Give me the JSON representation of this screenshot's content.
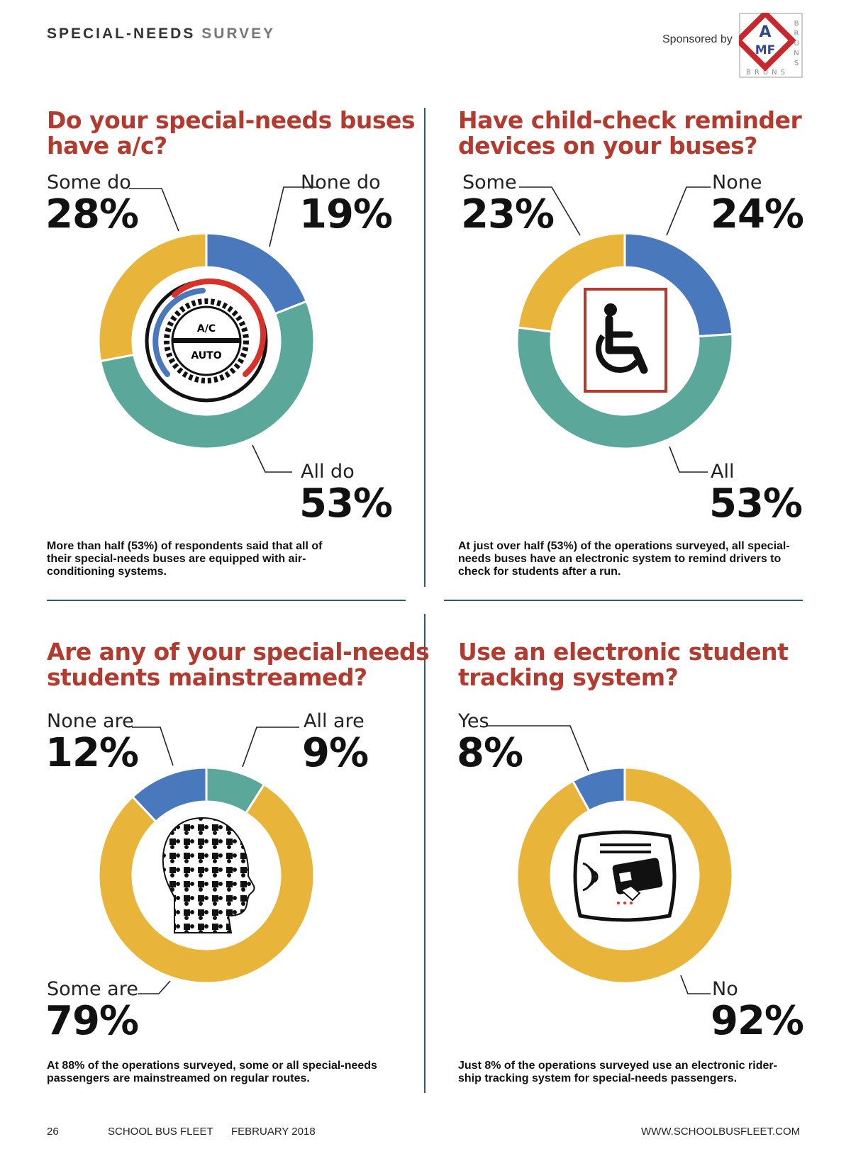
{
  "header": {
    "section_title_bold": "SPECIAL-NEEDS",
    "section_title_light": "SURVEY",
    "sponsor_text": "Sponsored by",
    "sponsor_logo": {
      "main": "AMF",
      "side": "BRUNS",
      "bottom": "BRUNS",
      "colors": {
        "red": "#c8282d",
        "blue": "#2e4a8e"
      }
    }
  },
  "colors": {
    "blue": "#4a78bd",
    "teal": "#5ba89b",
    "gold": "#e9b43a",
    "accent_red": "#b33a2e",
    "divider": "#2b5e6e"
  },
  "chart_data": [
    {
      "type": "pie",
      "title": "Do your special-needs buses have a/c?",
      "icon": "ac-dial-icon",
      "icon_text": {
        "top": "A/C",
        "bottom": "AUTO"
      },
      "slices": [
        {
          "label": "None do",
          "value": 19,
          "display": "19%",
          "color": "#4a78bd"
        },
        {
          "label": "All do",
          "value": 53,
          "display": "53%",
          "color": "#5ba89b"
        },
        {
          "label": "Some do",
          "value": 28,
          "display": "28%",
          "color": "#e9b43a"
        }
      ],
      "caption": "More than half (53%) of respondents said that all of their special-needs buses are equipped with air-conditioning systems."
    },
    {
      "type": "pie",
      "title": "Have child-check reminder devices on your buses?",
      "icon": "wheelchair-icon",
      "slices": [
        {
          "label": "None",
          "value": 24,
          "display": "24%",
          "color": "#4a78bd"
        },
        {
          "label": "All",
          "value": 53,
          "display": "53%",
          "color": "#5ba89b"
        },
        {
          "label": "Some",
          "value": 23,
          "display": "23%",
          "color": "#e9b43a"
        }
      ],
      "caption": "At just over half (53%) of the operations surveyed, all special-needs buses have an electronic system to remind drivers to check for students after a run."
    },
    {
      "type": "pie",
      "title": "Are any of your special-needs students mainstreamed?",
      "icon": "puzzle-head-icon",
      "slices": [
        {
          "label": "All are",
          "value": 9,
          "display": "9%",
          "color": "#5ba89b"
        },
        {
          "label": "Some are",
          "value": 79,
          "display": "79%",
          "color": "#e9b43a"
        },
        {
          "label": "None are",
          "value": 12,
          "display": "12%",
          "color": "#4a78bd"
        }
      ],
      "caption": "At 88% of the operations surveyed, some or all special-needs passengers are mainstreamed on regular routes."
    },
    {
      "type": "pie",
      "title": "Use an electronic student tracking system?",
      "icon": "card-reader-icon",
      "slices": [
        {
          "label": "No",
          "value": 92,
          "display": "92%",
          "color": "#e9b43a"
        },
        {
          "label": "Yes",
          "value": 8,
          "display": "8%",
          "color": "#4a78bd"
        }
      ],
      "caption": "Just 8% of the operations surveyed use an electronic rider-ship tracking system for special-needs passengers."
    }
  ],
  "footer": {
    "page_number": "26",
    "publication": "SCHOOL BUS FLEET",
    "issue": "FEBRUARY 2018",
    "website": "WWW.SCHOOLBUSFLEET.COM"
  }
}
